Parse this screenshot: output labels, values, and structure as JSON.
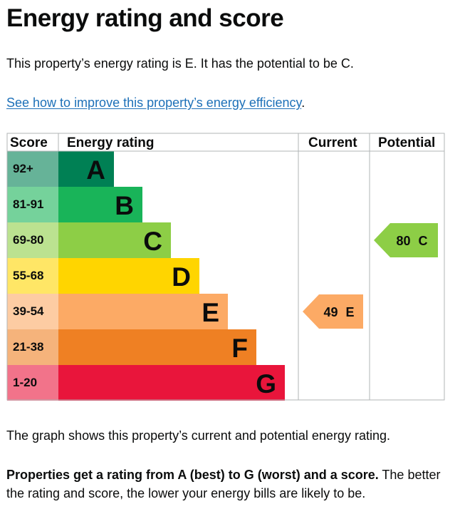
{
  "page": {
    "title": "Energy rating and score",
    "intro": "This property’s energy rating is E. It has the potential to be C.",
    "improve_link": "See how to improve this property’s energy efficiency",
    "improve_suffix": ".",
    "caption": "The graph shows this property’s current and potential energy rating.",
    "note_bold": "Properties get a rating from A (best) to G (worst) and a score.",
    "note_rest": " The better the rating and score, the lower your energy bills are likely to be."
  },
  "chart_data": {
    "type": "bar",
    "columns": [
      "Score",
      "Energy rating",
      "Current",
      "Potential"
    ],
    "bands": [
      {
        "letter": "A",
        "range": "92+",
        "color": "#008054",
        "score_color": "#66b398"
      },
      {
        "letter": "B",
        "range": "81-91",
        "color": "#19b459",
        "score_color": "#75d29b"
      },
      {
        "letter": "C",
        "range": "69-80",
        "color": "#8dce46",
        "score_color": "#bbe290"
      },
      {
        "letter": "D",
        "range": "55-68",
        "color": "#ffd500",
        "score_color": "#ffe666"
      },
      {
        "letter": "E",
        "range": "39-54",
        "color": "#fcaa65",
        "score_color": "#fdcca3"
      },
      {
        "letter": "F",
        "range": "21-38",
        "color": "#ef8023",
        "score_color": "#f5b37b"
      },
      {
        "letter": "G",
        "range": "1-20",
        "color": "#e9153b",
        "score_color": "#f2738a"
      }
    ],
    "current": {
      "score": 49,
      "band": "E",
      "label": "49 E"
    },
    "potential": {
      "score": 80,
      "band": "C",
      "label": "80 C"
    }
  }
}
